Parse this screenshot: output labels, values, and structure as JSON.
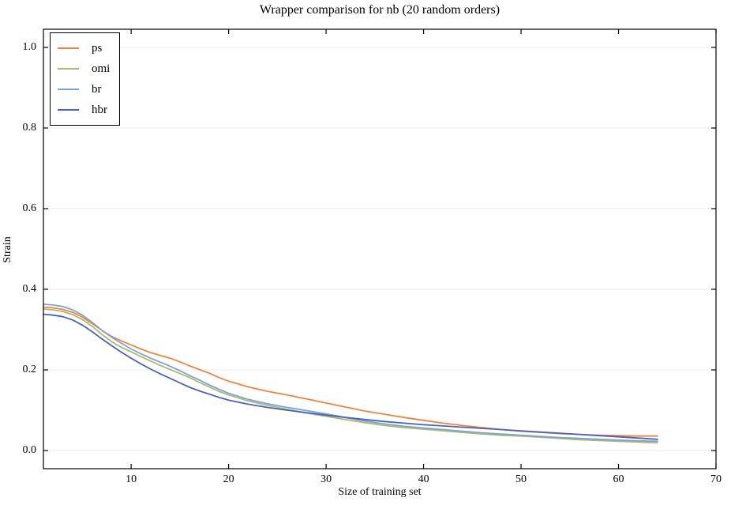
{
  "chart_data": {
    "type": "line",
    "title": "Wrapper comparison for nb (20 random orders)",
    "xlabel": "Size of training set",
    "ylabel": "Strain",
    "xlim": [
      1,
      70
    ],
    "ylim": [
      -0.045,
      1.045
    ],
    "grid": "horizontal-only",
    "legend_position": "upper-left",
    "x_ticks": {
      "values": [
        10,
        20,
        30,
        40,
        50,
        60,
        70
      ],
      "labels": [
        "10",
        "20",
        "30",
        "40",
        "50",
        "60",
        "70"
      ]
    },
    "y_ticks": {
      "values": [
        0.0,
        0.2,
        0.4,
        0.6,
        0.8,
        1.0
      ],
      "labels": [
        "0.0",
        "0.2",
        "0.4",
        "0.6",
        "0.8",
        "1.0"
      ]
    },
    "x": [
      1,
      2,
      3,
      4,
      5,
      6,
      7,
      8,
      9,
      10,
      11,
      12,
      13,
      14,
      15,
      16,
      17,
      18,
      19,
      20,
      22,
      24,
      26,
      28,
      30,
      32,
      34,
      36,
      38,
      40,
      42,
      44,
      46,
      48,
      50,
      52,
      54,
      56,
      58,
      60,
      62,
      64
    ],
    "series": [
      {
        "name": "ps",
        "color": "#EC8540",
        "values": [
          0.356,
          0.354,
          0.35,
          0.343,
          0.331,
          0.315,
          0.298,
          0.283,
          0.272,
          0.262,
          0.252,
          0.243,
          0.236,
          0.229,
          0.22,
          0.21,
          0.201,
          0.192,
          0.181,
          0.172,
          0.158,
          0.147,
          0.138,
          0.128,
          0.118,
          0.108,
          0.098,
          0.09,
          0.082,
          0.075,
          0.068,
          0.062,
          0.057,
          0.052,
          0.048,
          0.045,
          0.042,
          0.04,
          0.038,
          0.037,
          0.036,
          0.036
        ]
      },
      {
        "name": "omi",
        "color": "#ACB96E",
        "values": [
          0.351,
          0.349,
          0.345,
          0.337,
          0.325,
          0.308,
          0.288,
          0.27,
          0.256,
          0.245,
          0.233,
          0.222,
          0.211,
          0.201,
          0.191,
          0.181,
          0.169,
          0.158,
          0.147,
          0.138,
          0.123,
          0.112,
          0.102,
          0.093,
          0.085,
          0.077,
          0.069,
          0.062,
          0.057,
          0.053,
          0.049,
          0.045,
          0.041,
          0.038,
          0.036,
          0.033,
          0.03,
          0.027,
          0.025,
          0.023,
          0.021,
          0.019
        ]
      },
      {
        "name": "br",
        "color": "#7BA3D6",
        "values": [
          0.363,
          0.361,
          0.357,
          0.349,
          0.336,
          0.318,
          0.298,
          0.281,
          0.266,
          0.252,
          0.24,
          0.229,
          0.219,
          0.209,
          0.198,
          0.186,
          0.175,
          0.163,
          0.152,
          0.142,
          0.127,
          0.116,
          0.107,
          0.099,
          0.091,
          0.082,
          0.073,
          0.066,
          0.06,
          0.056,
          0.052,
          0.048,
          0.044,
          0.041,
          0.038,
          0.035,
          0.032,
          0.03,
          0.028,
          0.026,
          0.024,
          0.023
        ]
      },
      {
        "name": "hbr",
        "color": "#4A62BE",
        "values": [
          0.338,
          0.336,
          0.332,
          0.324,
          0.311,
          0.295,
          0.277,
          0.26,
          0.244,
          0.229,
          0.215,
          0.202,
          0.19,
          0.179,
          0.168,
          0.157,
          0.148,
          0.14,
          0.132,
          0.125,
          0.115,
          0.107,
          0.1,
          0.094,
          0.088,
          0.082,
          0.077,
          0.072,
          0.068,
          0.064,
          0.061,
          0.058,
          0.055,
          0.052,
          0.049,
          0.046,
          0.043,
          0.04,
          0.037,
          0.034,
          0.031,
          0.028
        ]
      }
    ],
    "style": {
      "grid_color": "#ECECEC",
      "axis_color": "#000000",
      "background": "#FFFFFF",
      "line_width": 1.8
    }
  }
}
